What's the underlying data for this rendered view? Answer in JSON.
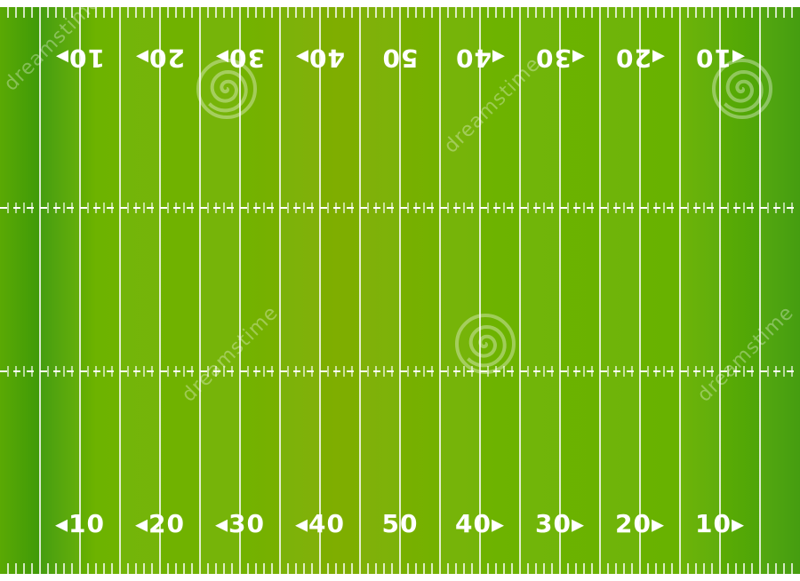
{
  "field": {
    "colors": {
      "turf_dark": "#3f9a08",
      "turf_mid": "#6db300",
      "turf_light": "#78b400",
      "turf_center": "#7fae00",
      "lines": "#ffffff",
      "page_background": "#ffffff"
    },
    "top_yard_numbers": [
      {
        "text": "10",
        "direction": "left"
      },
      {
        "text": "20",
        "direction": "left"
      },
      {
        "text": "30",
        "direction": "left"
      },
      {
        "text": "40",
        "direction": "left"
      },
      {
        "text": "50",
        "direction": "none"
      },
      {
        "text": "40",
        "direction": "right"
      },
      {
        "text": "30",
        "direction": "right"
      },
      {
        "text": "20",
        "direction": "right"
      },
      {
        "text": "10",
        "direction": "right"
      }
    ],
    "bottom_yard_numbers": [
      {
        "text": "10",
        "direction": "left"
      },
      {
        "text": "20",
        "direction": "left"
      },
      {
        "text": "30",
        "direction": "left"
      },
      {
        "text": "40",
        "direction": "left"
      },
      {
        "text": "50",
        "direction": "none"
      },
      {
        "text": "40",
        "direction": "right"
      },
      {
        "text": "30",
        "direction": "right"
      },
      {
        "text": "20",
        "direction": "right"
      },
      {
        "text": "10",
        "direction": "right"
      }
    ]
  },
  "watermark": {
    "text": "dreamstime",
    "icon": "spiral-logo-icon"
  }
}
